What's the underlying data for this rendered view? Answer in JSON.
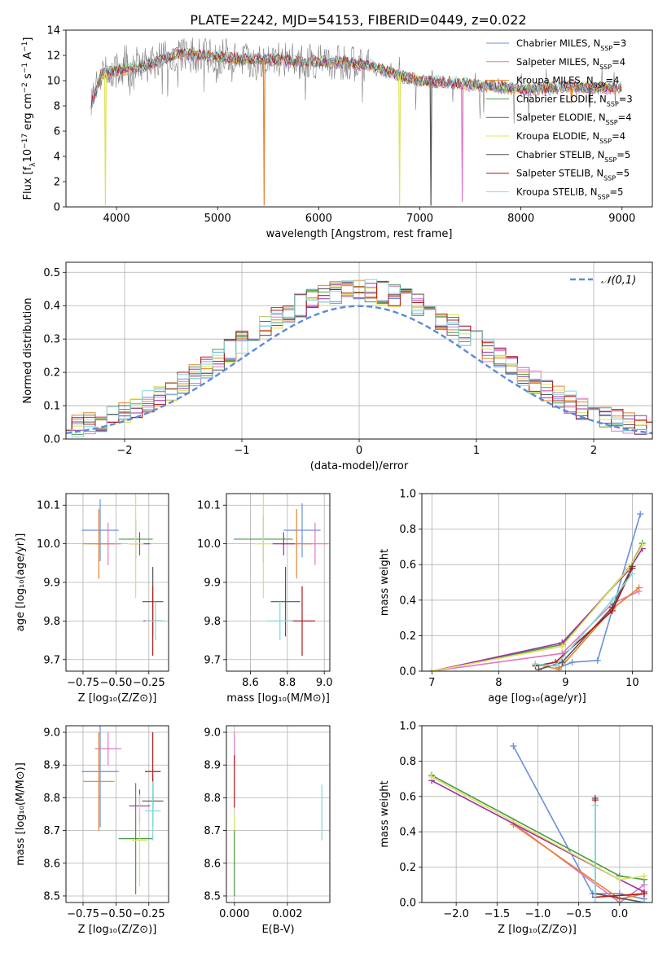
{
  "figure": {
    "title": "PLATE=2242, MJD=54153, FIBERID=0449, z=0.022"
  },
  "series_colors": [
    "#6a8fdc",
    "#e377c2",
    "#e8822a",
    "#4a9a4a",
    "#9d2fa8",
    "#dde35a",
    "#555555",
    "#b01818",
    "#7fd8dc"
  ],
  "chart_data": [
    {
      "id": "spectrum",
      "type": "line",
      "title": "PLATE=2242, MJD=54153, FIBERID=0449, z=0.022",
      "xlabel": "wavelength [Angstrom, rest frame]",
      "ylabel": "Flux [f",
      "ylabel_parts": [
        "Flux [f",
        "λ",
        "10",
        "−17",
        " erg cm",
        "−2",
        " s",
        "−1",
        " A",
        "−1",
        "]"
      ],
      "xlim": [
        3500,
        9300
      ],
      "ylim": [
        0,
        14
      ],
      "xticks": [
        4000,
        5000,
        6000,
        7000,
        8000,
        9000
      ],
      "yticks": [
        0,
        2,
        4,
        6,
        8,
        10,
        12,
        14
      ],
      "legend": "upper-right",
      "series": [
        {
          "name": "Chabrier MILES, N",
          "sub": "SSP",
          "suffix": "=3"
        },
        {
          "name": "Salpeter MILES, N",
          "sub": "SSP",
          "suffix": "=4"
        },
        {
          "name": "Kroupa MILES, N",
          "sub": "SSP",
          "suffix": "=4"
        },
        {
          "name": "Chabrier ELODIE, N",
          "sub": "SSP",
          "suffix": "=3"
        },
        {
          "name": "Salpeter ELODIE, N",
          "sub": "SSP",
          "suffix": "=4"
        },
        {
          "name": "Kroupa ELODIE, N",
          "sub": "SSP",
          "suffix": "=4"
        },
        {
          "name": "Chabrier STELIB, N",
          "sub": "SSP",
          "suffix": "=5"
        },
        {
          "name": "Salpeter STELIB, N",
          "sub": "SSP",
          "suffix": "=5"
        },
        {
          "name": "Kroupa STELIB, N",
          "sub": "SSP",
          "suffix": "=5"
        }
      ],
      "continuum": [
        [
          3750,
          8
        ],
        [
          3850,
          10.5
        ],
        [
          4000,
          10.8
        ],
        [
          4200,
          11
        ],
        [
          4400,
          11.5
        ],
        [
          4600,
          12.1
        ],
        [
          4800,
          12
        ],
        [
          5000,
          11.9
        ],
        [
          5200,
          11.7
        ],
        [
          5500,
          11.7
        ],
        [
          5800,
          11.5
        ],
        [
          6000,
          11.5
        ],
        [
          6300,
          11.4
        ],
        [
          6500,
          11.2
        ],
        [
          6800,
          10.4
        ],
        [
          7000,
          10.0
        ],
        [
          7500,
          9.7
        ],
        [
          8000,
          9.3
        ],
        [
          8500,
          9.5
        ],
        [
          9000,
          9.4
        ]
      ],
      "sky_dips": [
        [
          5460,
          0.1,
          2
        ],
        [
          6800,
          0.1,
          5
        ],
        [
          7110,
          0.1,
          6
        ],
        [
          7420,
          0.4,
          1
        ],
        [
          3890,
          0.1,
          5
        ],
        [
          8680,
          7.9,
          6
        ],
        [
          8500,
          8.2,
          2
        ]
      ]
    },
    {
      "id": "residuals",
      "type": "histogram",
      "xlabel": "(data-model)/error",
      "ylabel": "Normed distribution",
      "xlim": [
        -2.5,
        2.5
      ],
      "ylim": [
        0,
        0.53
      ],
      "xticks": [
        -2,
        -1,
        0,
        1,
        2
      ],
      "yticks": [
        0.0,
        0.1,
        0.2,
        0.3,
        0.4,
        0.5
      ],
      "grid": true,
      "legend": "upper-right",
      "reference": {
        "name": "𝒩(0,1)",
        "mean": 0,
        "sd": 1
      }
    },
    {
      "id": "age-vs-Z",
      "type": "scatter",
      "xlabel": "Z [log₁₀(Z/Z⊙)]",
      "ylabel": "age  [log₁₀(age/yr)]",
      "xlim": [
        -0.88,
        -0.1
      ],
      "ylim": [
        9.67,
        10.13
      ],
      "xticks": [
        -0.75,
        -0.5,
        -0.25
      ],
      "xticklabels": [
        "−0.75",
        "−0.50",
        "−0.25"
      ],
      "yticks": [
        9.7,
        9.8,
        9.9,
        10.0,
        10.1
      ],
      "grid": true,
      "points": [
        {
          "x": -0.62,
          "y": 10.035,
          "xerr": 0.14,
          "yerr": 0.08,
          "c": 0
        },
        {
          "x": -0.56,
          "y": 10.0,
          "xerr": 0.1,
          "yerr": 0.055,
          "c": 1
        },
        {
          "x": -0.63,
          "y": 10.0,
          "xerr": 0.12,
          "yerr": 0.09,
          "c": 2
        },
        {
          "x": -0.35,
          "y": 10.012,
          "xerr": 0.13,
          "yerr": 0.05,
          "c": 3
        },
        {
          "x": -0.32,
          "y": 10.0,
          "xerr": 0.08,
          "yerr": 0.03,
          "c": 4
        },
        {
          "x": -0.35,
          "y": 10.0,
          "xerr": 0.06,
          "yerr": 0.14,
          "c": 5
        },
        {
          "x": -0.22,
          "y": 9.85,
          "xerr": 0.08,
          "yerr": 0.09,
          "c": 6
        },
        {
          "x": -0.22,
          "y": 9.8,
          "xerr": 0.07,
          "yerr": 0.09,
          "c": 7
        },
        {
          "x": -0.2,
          "y": 9.8,
          "xerr": 0.08,
          "yerr": 0.05,
          "c": 8
        }
      ]
    },
    {
      "id": "age-vs-mass",
      "type": "scatter",
      "xlabel": "mass [log₁₀(M/M⊙)]",
      "ylabel": "",
      "xlim": [
        8.47,
        9.03
      ],
      "ylim": [
        9.67,
        10.13
      ],
      "xticks": [
        8.6,
        8.8,
        9.0
      ],
      "xticklabels": [
        "8.6",
        "8.8",
        "9.0"
      ],
      "yticks": [
        9.7,
        9.8,
        9.9,
        10.0,
        10.1
      ],
      "grid": true,
      "points": [
        {
          "x": 8.88,
          "y": 10.035,
          "xerr": 0.1,
          "yerr": 0.07,
          "c": 0
        },
        {
          "x": 8.95,
          "y": 10.0,
          "xerr": 0.07,
          "yerr": 0.055,
          "c": 1
        },
        {
          "x": 8.85,
          "y": 10.0,
          "xerr": 0.08,
          "yerr": 0.09,
          "c": 2
        },
        {
          "x": 8.67,
          "y": 10.012,
          "xerr": 0.16,
          "yerr": 0.06,
          "c": 3
        },
        {
          "x": 8.78,
          "y": 10.0,
          "xerr": 0.06,
          "yerr": 0.03,
          "c": 4
        },
        {
          "x": 8.67,
          "y": 10.0,
          "xerr": 0.05,
          "yerr": 0.14,
          "c": 5
        },
        {
          "x": 8.79,
          "y": 9.85,
          "xerr": 0.08,
          "yerr": 0.09,
          "c": 6
        },
        {
          "x": 8.88,
          "y": 9.8,
          "xerr": 0.07,
          "yerr": 0.09,
          "c": 7
        },
        {
          "x": 8.76,
          "y": 9.8,
          "xerr": 0.07,
          "yerr": 0.05,
          "c": 8
        }
      ]
    },
    {
      "id": "weight-vs-age",
      "type": "line",
      "xlabel": "age  [log₁₀(age/yr)]",
      "ylabel": "mass weight",
      "xlim": [
        6.85,
        10.3
      ],
      "ylim": [
        0,
        1
      ],
      "xticks": [
        7,
        8,
        9,
        10
      ],
      "xticklabels": [
        "7",
        "8",
        "9",
        "10"
      ],
      "yticks": [
        0.0,
        0.2,
        0.4,
        0.6,
        0.8,
        1.0
      ],
      "grid": true,
      "series": [
        {
          "c": 0,
          "x": [
            8.9,
            9.1,
            9.48,
            10.12
          ],
          "y": [
            0.02,
            0.05,
            0.06,
            0.885
          ]
        },
        {
          "c": 1,
          "x": [
            7.0,
            8.95,
            9.7,
            10.1
          ],
          "y": [
            0.0,
            0.1,
            0.38,
            0.45
          ]
        },
        {
          "c": 2,
          "x": [
            8.55,
            8.9,
            9.7,
            10.1
          ],
          "y": [
            0.04,
            0.01,
            0.35,
            0.47
          ]
        },
        {
          "c": 3,
          "x": [
            7.0,
            8.95,
            9.95,
            10.15
          ],
          "y": [
            0.0,
            0.15,
            0.58,
            0.72
          ]
        },
        {
          "c": 4,
          "x": [
            7.0,
            8.95,
            9.95,
            10.15
          ],
          "y": [
            0.0,
            0.16,
            0.57,
            0.69
          ]
        },
        {
          "c": 5,
          "x": [
            7.0,
            8.95,
            9.95,
            10.15
          ],
          "y": [
            0.0,
            0.14,
            0.58,
            0.71
          ]
        },
        {
          "c": 6,
          "x": [
            8.6,
            8.95,
            9.7,
            10.0
          ],
          "y": [
            0.01,
            0.05,
            0.36,
            0.59
          ]
        },
        {
          "c": 7,
          "x": [
            8.55,
            8.85,
            9.7,
            10.0
          ],
          "y": [
            0.03,
            0.05,
            0.34,
            0.58
          ]
        },
        {
          "c": 8,
          "x": [
            8.55,
            8.85,
            9.7,
            10.0
          ],
          "y": [
            0.04,
            0.03,
            0.4,
            0.55
          ]
        }
      ]
    },
    {
      "id": "mass-vs-Z",
      "type": "scatter",
      "xlabel": "Z [log₁₀(Z/Z⊙)]",
      "ylabel": "mass [log₁₀(M/M⊙)]",
      "xlim": [
        -0.88,
        -0.1
      ],
      "ylim": [
        8.48,
        9.02
      ],
      "xticks": [
        -0.75,
        -0.5,
        -0.25
      ],
      "xticklabels": [
        "−0.75",
        "−0.50",
        "−0.25"
      ],
      "yticks": [
        8.5,
        8.6,
        8.7,
        8.8,
        8.9,
        9.0
      ],
      "grid": true,
      "points": [
        {
          "x": -0.62,
          "y": 8.88,
          "xerr": 0.14,
          "yerr": 0.17,
          "c": 0
        },
        {
          "x": -0.56,
          "y": 8.95,
          "xerr": 0.1,
          "yerr": 0.05,
          "c": 1
        },
        {
          "x": -0.63,
          "y": 8.85,
          "xerr": 0.12,
          "yerr": 0.15,
          "c": 2
        },
        {
          "x": -0.35,
          "y": 8.675,
          "xerr": 0.13,
          "yerr": 0.17,
          "c": 3
        },
        {
          "x": -0.32,
          "y": 8.775,
          "xerr": 0.08,
          "yerr": 0.05,
          "c": 4
        },
        {
          "x": -0.32,
          "y": 8.67,
          "xerr": 0.06,
          "yerr": 0.14,
          "c": 5
        },
        {
          "x": -0.22,
          "y": 8.79,
          "xerr": 0.08,
          "yerr": 0.08,
          "c": 6
        },
        {
          "x": -0.22,
          "y": 8.88,
          "xerr": 0.06,
          "yerr": 0.12,
          "c": 7
        },
        {
          "x": -0.22,
          "y": 8.76,
          "xerr": 0.06,
          "yerr": 0.09,
          "c": 8
        }
      ]
    },
    {
      "id": "mass-vs-ebv",
      "type": "scatter",
      "xlabel": "E(B-V)",
      "ylabel": "",
      "xlim": [
        -0.0003,
        0.0036
      ],
      "ylim": [
        8.48,
        9.02
      ],
      "xticks": [
        0.0,
        0.002
      ],
      "xticklabels": [
        "0.000",
        "0.002"
      ],
      "yticks": [
        8.5,
        8.6,
        8.7,
        8.8,
        8.9,
        9.0
      ],
      "grid": true,
      "points": [
        {
          "x": 0.0,
          "y": 8.95,
          "xerr": 0,
          "yerr": 0.05,
          "c": 1
        },
        {
          "x": 0.0,
          "y": 8.85,
          "xerr": 0,
          "yerr": 0.08,
          "c": 7
        },
        {
          "x": 0.0,
          "y": 8.67,
          "xerr": 0,
          "yerr": 0.08,
          "c": 5
        },
        {
          "x": 0.0,
          "y": 8.6,
          "xerr": 0,
          "yerr": 0.1,
          "c": 3
        },
        {
          "x": 0.0033,
          "y": 8.755,
          "xerr": 0,
          "yerr": 0.085,
          "c": 8
        }
      ]
    },
    {
      "id": "weight-vs-Z",
      "type": "line",
      "xlabel": "Z [log₁₀(Z/Z⊙)]",
      "ylabel": "mass weight",
      "xlim": [
        -2.42,
        0.4
      ],
      "ylim": [
        0,
        1
      ],
      "xticks": [
        -2.0,
        -1.5,
        -1.0,
        -0.5,
        0.0
      ],
      "xticklabels": [
        "−2.0",
        "−1.5",
        "−1.0",
        "−0.5",
        "0.0"
      ],
      "yticks": [
        0.0,
        0.2,
        0.4,
        0.6,
        0.8,
        1.0
      ],
      "grid": true,
      "series": [
        {
          "c": 0,
          "x": [
            -1.3,
            -0.33,
            0.0,
            0.3
          ],
          "y": [
            0.885,
            0.05,
            0.05,
            0.02
          ]
        },
        {
          "c": 1,
          "x": [
            -1.3,
            0.0,
            0.3
          ],
          "y": [
            0.45,
            0.0,
            0.1
          ]
        },
        {
          "c": 2,
          "x": [
            -1.3,
            0.0,
            0.3
          ],
          "y": [
            0.44,
            0.02,
            0.05
          ]
        },
        {
          "c": 3,
          "x": [
            -2.3,
            0.0,
            0.3
          ],
          "y": [
            0.72,
            0.15,
            0.13
          ]
        },
        {
          "c": 4,
          "x": [
            -2.3,
            0.0,
            0.3
          ],
          "y": [
            0.69,
            0.13,
            0.06
          ]
        },
        {
          "c": 5,
          "x": [
            -2.3,
            0.0,
            0.3
          ],
          "y": [
            0.71,
            0.13,
            0.15
          ]
        },
        {
          "c": 6,
          "x": [
            -0.3,
            -0.3,
            0.3
          ],
          "y": [
            0.59,
            0.05,
            0.0
          ]
        },
        {
          "c": 7,
          "x": [
            -0.3,
            -0.3,
            0.3
          ],
          "y": [
            0.58,
            0.03,
            0.05
          ]
        },
        {
          "c": 8,
          "x": [
            -0.3,
            -0.3,
            0.3
          ],
          "y": [
            0.55,
            0.0,
            0.0
          ]
        }
      ]
    }
  ]
}
